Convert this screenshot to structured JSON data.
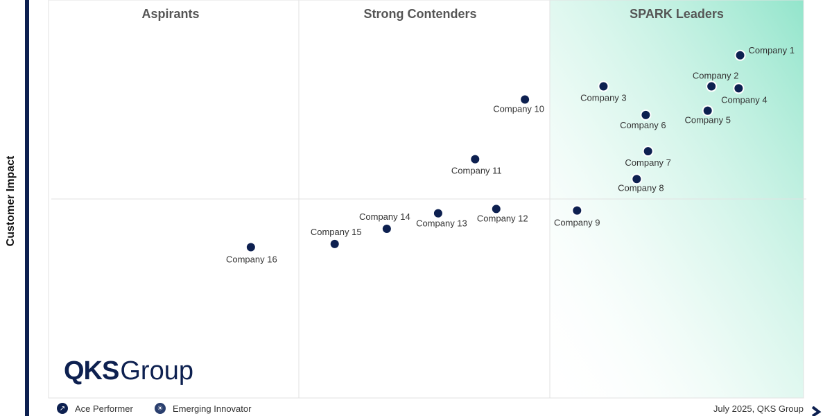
{
  "chart_data": {
    "type": "scatter",
    "ylabel": "Customer Impact",
    "xlabel": "",
    "xlim": [
      0,
      100
    ],
    "ylim": [
      0,
      100
    ],
    "quadrants": [
      "Aspirants",
      "Strong Contenders",
      "SPARK Leaders"
    ],
    "points": [
      {
        "label": "Company 1",
        "x": 91.6,
        "y": 86.1
      },
      {
        "label": "Company 2",
        "x": 87.8,
        "y": 78.3
      },
      {
        "label": "Company 3",
        "x": 73.5,
        "y": 78.3
      },
      {
        "label": "Company 4",
        "x": 91.4,
        "y": 77.8
      },
      {
        "label": "Company 5",
        "x": 87.3,
        "y": 72.2
      },
      {
        "label": "Company 6",
        "x": 79.1,
        "y": 71.1
      },
      {
        "label": "Company 7",
        "x": 79.4,
        "y": 62.0
      },
      {
        "label": "Company 8",
        "x": 77.9,
        "y": 55.0
      },
      {
        "label": "Company 9",
        "x": 70.0,
        "y": 47.1
      },
      {
        "label": "Company 10",
        "x": 63.1,
        "y": 75.0
      },
      {
        "label": "Company 11",
        "x": 56.5,
        "y": 60.0
      },
      {
        "label": "Company 12",
        "x": 59.3,
        "y": 47.5
      },
      {
        "label": "Company 13",
        "x": 51.6,
        "y": 46.4
      },
      {
        "label": "Company 14",
        "x": 44.8,
        "y": 42.5
      },
      {
        "label": "Company 15",
        "x": 37.9,
        "y": 38.7
      },
      {
        "label": "Company 16",
        "x": 26.8,
        "y": 37.9
      }
    ]
  },
  "logo": {
    "bold": "QKS",
    "regular": "Group"
  },
  "legend": [
    {
      "label": "Ace Performer",
      "icon": "trend-up-icon"
    },
    {
      "label": "Emerging Innovator",
      "icon": "bulb-icon"
    }
  ],
  "credit": "July 2025, QKS Group",
  "colors": {
    "point": "#0d2050",
    "axis": "#0d2050",
    "leaders_gradient": "#7fe0c2"
  }
}
